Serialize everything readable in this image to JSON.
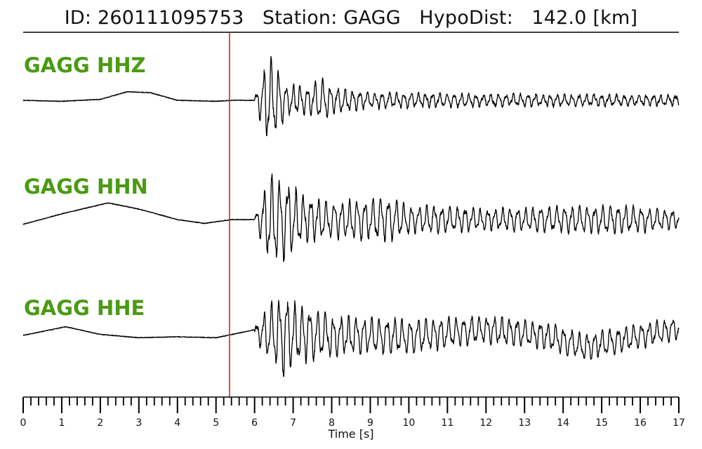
{
  "title": "ID: 260111095753   Station: GAGG   HypoDist:   142.0 [km]",
  "colors": {
    "label": "#4a9a12",
    "trace": "#000000",
    "pick": "#e02020",
    "axis": "#000000"
  },
  "chart_data": {
    "type": "line",
    "xlabel": "Time [s]",
    "xlim": [
      0,
      17
    ],
    "major_ticks": [
      0,
      1,
      2,
      3,
      4,
      5,
      6,
      7,
      8,
      9,
      10,
      11,
      12,
      13,
      14,
      15,
      16,
      17
    ],
    "minor_tick_step": 0.2,
    "pick_time": 5.35,
    "traces": [
      {
        "name": "GAGG HHZ",
        "onset": 6.0,
        "lowfreq_amp": 0.12,
        "lowfreq": [
          [
            0,
            0.0
          ],
          [
            1,
            -0.02
          ],
          [
            2,
            0.02
          ],
          [
            2.7,
            0.18
          ],
          [
            3.3,
            0.16
          ],
          [
            4,
            0.0
          ],
          [
            5,
            -0.02
          ],
          [
            5.4,
            0.0
          ],
          [
            6,
            0.0
          ]
        ],
        "burst": [
          [
            6.0,
            0.05
          ],
          [
            6.2,
            0.6
          ],
          [
            6.35,
            1.0
          ],
          [
            6.6,
            0.75
          ],
          [
            6.8,
            0.35
          ],
          [
            7.4,
            0.3
          ],
          [
            7.7,
            0.5
          ],
          [
            8.0,
            0.3
          ],
          [
            9,
            0.18
          ],
          [
            12,
            0.14
          ],
          [
            17,
            0.12
          ]
        ],
        "burst_period": 0.19
      },
      {
        "name": "GAGG HHN",
        "onset": 6.0,
        "lowfreq_amp": 0.18,
        "lowfreq": [
          [
            0,
            -0.1
          ],
          [
            1,
            0.12
          ],
          [
            2.2,
            0.35
          ],
          [
            3,
            0.22
          ],
          [
            4,
            0.0
          ],
          [
            4.7,
            -0.08
          ],
          [
            5.4,
            0.0
          ],
          [
            6,
            0.0
          ]
        ],
        "burst": [
          [
            6.0,
            0.05
          ],
          [
            6.2,
            0.55
          ],
          [
            6.4,
            1.0
          ],
          [
            6.9,
            0.85
          ],
          [
            7.2,
            0.55
          ],
          [
            8,
            0.4
          ],
          [
            8.8,
            0.45
          ],
          [
            9.5,
            0.5
          ],
          [
            10,
            0.32
          ],
          [
            12,
            0.24
          ],
          [
            15.5,
            0.32
          ],
          [
            17,
            0.2
          ]
        ],
        "burst_period": 0.2
      },
      {
        "name": "GAGG HHE",
        "onset": 6.0,
        "lowfreq_amp": 0.16,
        "lowfreq": [
          [
            0,
            0.0
          ],
          [
            1.1,
            0.18
          ],
          [
            2,
            0.02
          ],
          [
            3,
            -0.05
          ],
          [
            4,
            -0.03
          ],
          [
            5,
            -0.05
          ],
          [
            5.6,
            0.05
          ],
          [
            6,
            0.12
          ]
        ],
        "burst": [
          [
            6.0,
            0.15
          ],
          [
            6.3,
            0.55
          ],
          [
            6.8,
            0.95
          ],
          [
            7.0,
            0.7
          ],
          [
            8,
            0.45
          ],
          [
            9,
            0.4
          ],
          [
            10,
            0.38
          ],
          [
            12,
            0.3
          ],
          [
            14.5,
            0.3
          ],
          [
            17,
            0.25
          ]
        ],
        "burst_period": 0.2,
        "trend": [
          [
            6,
            0.05
          ],
          [
            8,
            0.0
          ],
          [
            10,
            -0.02
          ],
          [
            12,
            0.12
          ],
          [
            13.5,
            0.0
          ],
          [
            14.6,
            -0.25
          ],
          [
            15.5,
            -0.1
          ],
          [
            17,
            0.15
          ]
        ]
      }
    ]
  }
}
